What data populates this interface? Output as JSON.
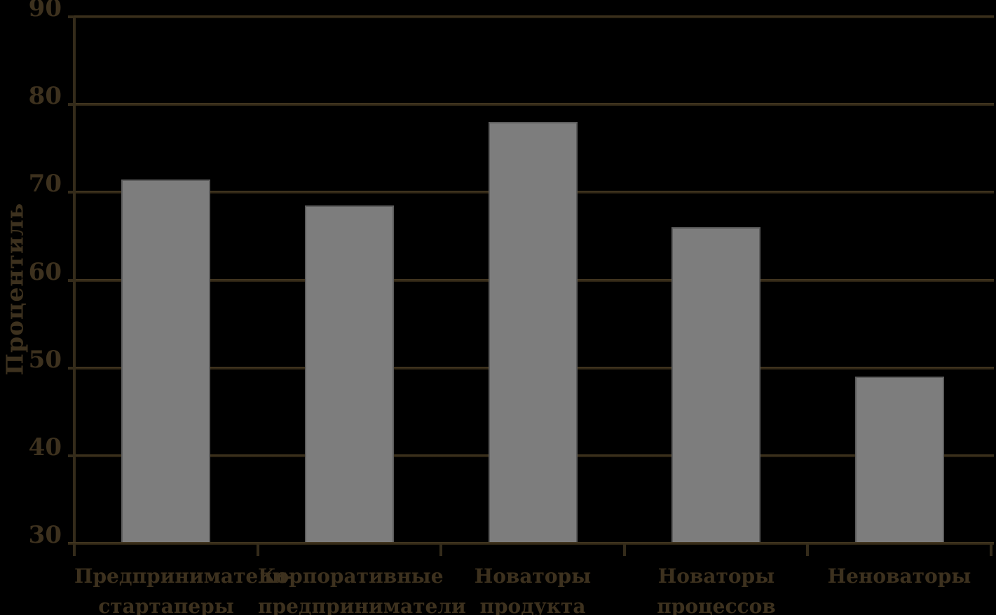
{
  "chart_data": {
    "type": "bar",
    "title": "",
    "xlabel": "",
    "ylabel": "Процентиль",
    "ylim": [
      30,
      90
    ],
    "yticks": [
      90,
      80,
      70,
      60,
      50,
      40,
      30
    ],
    "categories": [
      [
        "Предприниматели-",
        "стартаперы"
      ],
      [
        "Корпоративные",
        "предприниматели"
      ],
      [
        "Новаторы",
        "продукта"
      ],
      [
        "Новаторы",
        "процессов"
      ],
      [
        "Неноваторы"
      ]
    ],
    "values": [
      71.5,
      68.5,
      78,
      66,
      49
    ],
    "grid": true,
    "legend": false,
    "colors": {
      "background": "#000000",
      "bar_fill": "#7d7d7d",
      "bar_border": "#5d5d5d",
      "axis_line": "#342b1a",
      "text": "#3d311e"
    }
  }
}
